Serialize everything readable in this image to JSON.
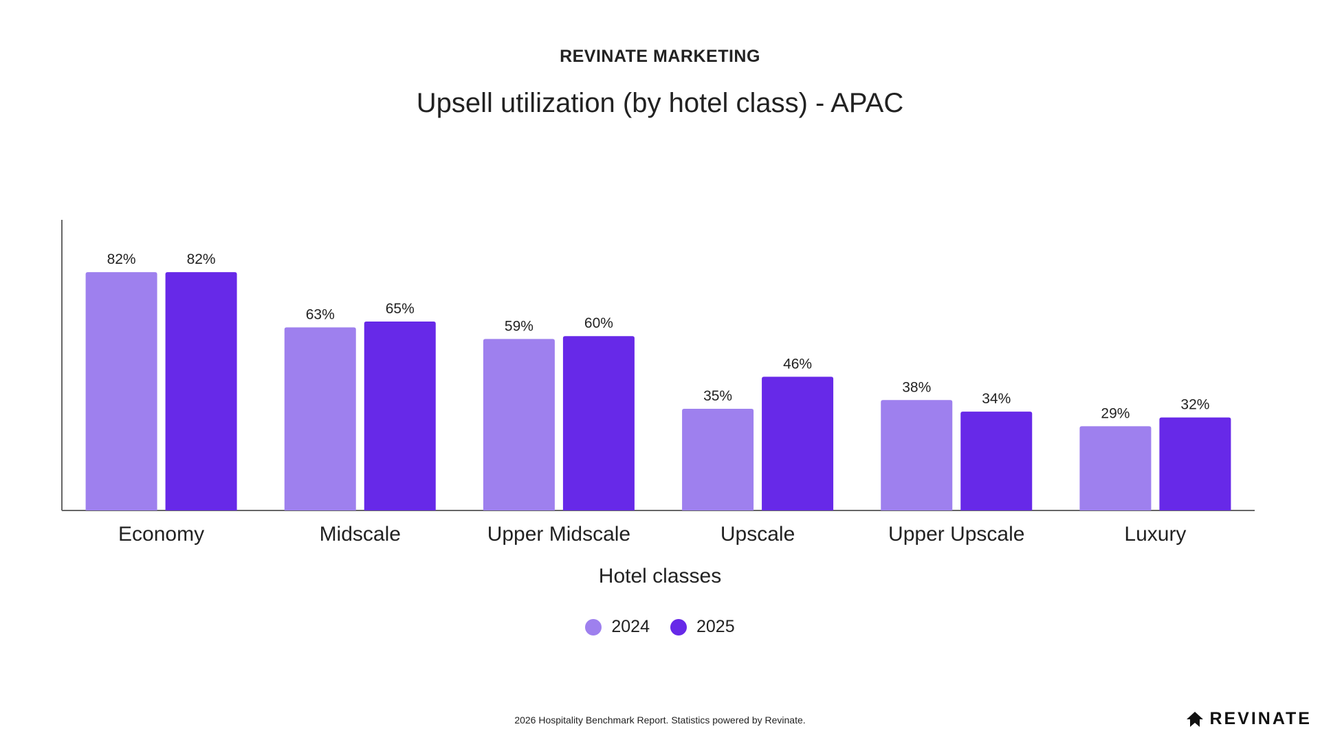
{
  "header": {
    "kicker": "REVINATE MARKETING",
    "title": "Upsell utilization (by hotel class) - APAC"
  },
  "chart_data": {
    "type": "bar",
    "title": "Upsell utilization (by hotel class) - APAC",
    "xlabel": "Hotel classes",
    "ylabel": "",
    "categories": [
      "Economy",
      "Midscale",
      "Upper Midscale",
      "Upscale",
      "Upper Upscale",
      "Luxury"
    ],
    "series": [
      {
        "name": "2024",
        "values": [
          82,
          63,
          59,
          35,
          38,
          29
        ],
        "labels": [
          "82%",
          "63%",
          "59%",
          "35%",
          "38%",
          "29%"
        ],
        "color": "#9e80ee"
      },
      {
        "name": "2025",
        "values": [
          82,
          65,
          60,
          46,
          34,
          32
        ],
        "labels": [
          "82%",
          "65%",
          "60%",
          "46%",
          "34%",
          "32%"
        ],
        "color": "#6729e8"
      }
    ],
    "ylim": [
      0,
      100
    ],
    "grid": false,
    "legend_position": "bottom-center"
  },
  "legend": [
    {
      "label": "2024",
      "color": "#9e80ee"
    },
    {
      "label": "2025",
      "color": "#6729e8"
    }
  ],
  "footer": {
    "note": "2026 Hospitality Benchmark Report. Statistics powered by Revinate.",
    "brand": "REVINATE",
    "brand_icon": "revinate-logo-icon"
  }
}
